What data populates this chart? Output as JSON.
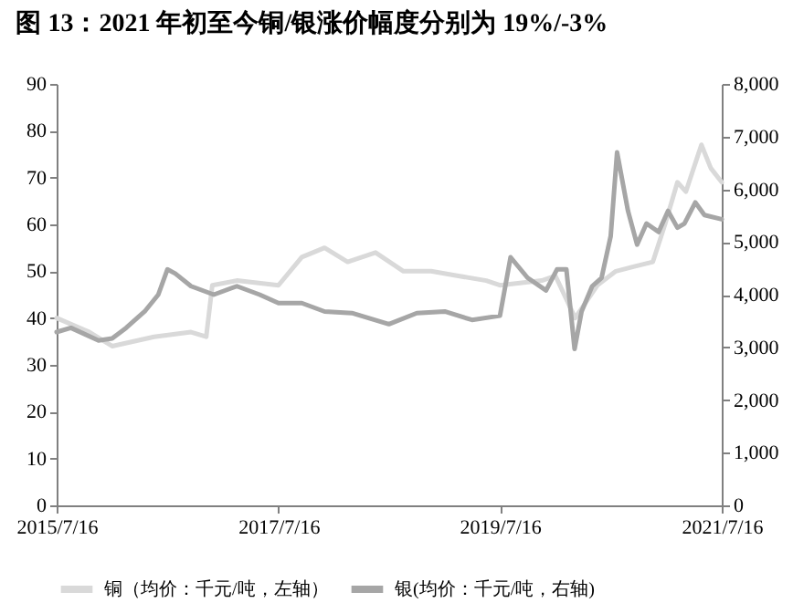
{
  "chart_data": {
    "type": "line",
    "title": "图 13：2021 年初至今铜/银涨价幅度分别为 19%/-3%",
    "xlim": [
      "2015-07-16",
      "2021-07-16"
    ],
    "xticks": [
      {
        "value": "2015-07-16",
        "label": "2015/7/16"
      },
      {
        "value": "2017-07-16",
        "label": "2017/7/16"
      },
      {
        "value": "2019-07-16",
        "label": "2019/7/16"
      },
      {
        "value": "2021-07-16",
        "label": "2021/7/16"
      }
    ],
    "ylim": [
      0,
      90
    ],
    "yticks": [
      0,
      10,
      20,
      30,
      40,
      50,
      60,
      70,
      80,
      90
    ],
    "y2lim": [
      0,
      8000
    ],
    "y2ticks": [
      {
        "value": 0,
        "label": "0"
      },
      {
        "value": 1000,
        "label": "1,000"
      },
      {
        "value": 2000,
        "label": "2,000"
      },
      {
        "value": 3000,
        "label": "3,000"
      },
      {
        "value": 4000,
        "label": "4,000"
      },
      {
        "value": 5000,
        "label": "5,000"
      },
      {
        "value": 6000,
        "label": "6,000"
      },
      {
        "value": 7000,
        "label": "7,000"
      },
      {
        "value": 8000,
        "label": "8,000"
      }
    ],
    "grid": false,
    "legend": "bottom",
    "marker": "none",
    "line_style": "solid",
    "series": [
      {
        "name": "铜（均价：千元/吨，左轴）",
        "color": "#d9d9d9",
        "x": [
          "2015-07-16",
          "2015-11-01",
          "2016-01-15",
          "2016-06-01",
          "2016-10-01",
          "2016-11-20",
          "2016-12-10",
          "2017-03-01",
          "2017-07-16",
          "2017-10-01",
          "2017-12-15",
          "2018-03-01",
          "2018-06-01",
          "2018-09-01",
          "2018-12-01",
          "2019-03-01",
          "2019-06-01",
          "2019-07-16",
          "2019-12-01",
          "2020-01-15",
          "2020-03-20",
          "2020-06-01",
          "2020-08-01",
          "2020-10-01",
          "2020-12-01",
          "2021-01-10",
          "2021-02-20",
          "2021-03-20",
          "2021-05-10",
          "2021-06-10",
          "2021-07-16"
        ],
        "values": [
          40,
          37,
          34,
          36,
          37,
          36,
          47,
          48,
          47,
          53,
          55,
          52,
          54,
          50,
          50,
          49,
          48,
          47,
          48,
          49,
          40,
          47,
          50,
          51,
          52,
          60,
          69,
          67,
          77,
          72,
          69
        ]
      },
      {
        "name": "银(均价：千元/吨，右轴)",
        "color": "#a6a6a6",
        "axis": "y2",
        "x": [
          "2015-07-16",
          "2015-09-01",
          "2015-12-01",
          "2016-01-15",
          "2016-03-01",
          "2016-05-01",
          "2016-06-15",
          "2016-07-15",
          "2016-08-10",
          "2016-10-01",
          "2016-12-15",
          "2017-03-01",
          "2017-05-15",
          "2017-07-16",
          "2017-10-01",
          "2017-12-15",
          "2018-03-15",
          "2018-07-15",
          "2018-10-15",
          "2019-01-15",
          "2019-04-15",
          "2019-07-16",
          "2019-08-20",
          "2019-10-15",
          "2019-12-15",
          "2020-01-20",
          "2020-02-20",
          "2020-03-18",
          "2020-04-10",
          "2020-05-15",
          "2020-06-15",
          "2020-07-15",
          "2020-08-05",
          "2020-09-10",
          "2020-10-10",
          "2020-11-10",
          "2020-12-20",
          "2021-01-20",
          "2021-02-20",
          "2021-03-15",
          "2021-04-20",
          "2021-05-20",
          "2021-07-16"
        ],
        "values": [
          3290,
          3370,
          3130,
          3170,
          3370,
          3680,
          4000,
          4480,
          4400,
          4160,
          4000,
          4160,
          4000,
          3840,
          3840,
          3680,
          3650,
          3440,
          3650,
          3680,
          3520,
          3600,
          4710,
          4320,
          4080,
          4480,
          4480,
          2970,
          3680,
          4160,
          4320,
          5110,
          6700,
          5590,
          4950,
          5350,
          5190,
          5590,
          5270,
          5350,
          5750,
          5510,
          5430
        ]
      }
    ]
  }
}
